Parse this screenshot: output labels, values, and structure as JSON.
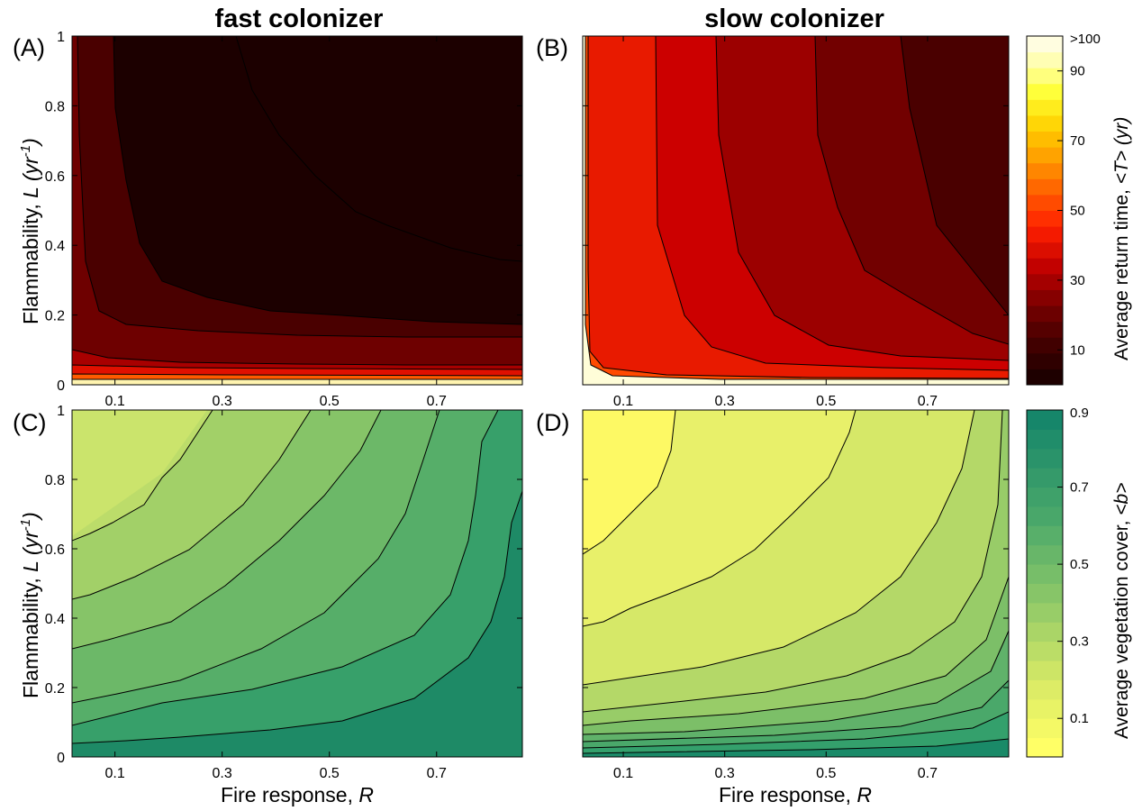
{
  "figure": {
    "title_left": "fast colonizer",
    "title_right": "slow colonizer",
    "ylabel_prefix": "Flammability, ",
    "ylabel_var": "L",
    "ylabel_unit_open": " (yr",
    "ylabel_unit_exp": "-1",
    "ylabel_unit_close": ")",
    "xlabel_prefix": "Fire response, ",
    "xlabel_var": "R",
    "colorbar_top_label_prefix": "Average return time, ",
    "colorbar_top_label_var": "<T> (yr)",
    "colorbar_bottom_label_prefix": "Average vegetation cover, ",
    "colorbar_bottom_label_var": "<b>"
  },
  "colors": {
    "return_time_low": "#1e0000",
    "return_time_high": "#fffde0",
    "cover_low": "#ffff66",
    "cover_high": "#16866a",
    "contour_line": "#000000"
  },
  "chart_data": [
    {
      "type": "heatmap",
      "panel": "(A)",
      "title": "fast colonizer",
      "x_ticks": [
        "0.1",
        "0.3",
        "0.5",
        "0.7"
      ],
      "y_ticks": [
        "0",
        "0.2",
        "0.4",
        "0.6",
        "0.8",
        "1"
      ],
      "xlim": [
        0.02,
        0.86
      ],
      "ylim": [
        0,
        1
      ],
      "z_label": "Average return time, <T> (yr)",
      "z_levels": [
        5,
        10,
        20,
        30,
        40,
        100
      ],
      "contours": [
        {
          "level": 5,
          "points": [
            [
              0.09,
              1.0
            ],
            [
              0.09,
              0.8
            ],
            [
              0.1,
              0.6
            ],
            [
              0.13,
              0.4
            ],
            [
              0.18,
              0.3
            ],
            [
              0.3,
              0.24
            ],
            [
              0.45,
              0.2
            ],
            [
              0.55,
              0.17
            ],
            [
              0.7,
              0.14
            ],
            [
              0.86,
              0.13
            ]
          ]
        },
        {
          "level": 10,
          "points": [
            [
              0.02,
              0.98
            ],
            [
              0.03,
              0.5
            ],
            [
              0.04,
              0.3
            ],
            [
              0.07,
              0.19
            ],
            [
              0.15,
              0.16
            ],
            [
              0.3,
              0.14
            ],
            [
              0.5,
              0.13
            ],
            [
              0.86,
              0.12
            ]
          ]
        }
      ]
    },
    {
      "type": "heatmap",
      "panel": "(B)",
      "title": "slow colonizer",
      "x_ticks": [
        "0.1",
        "0.3",
        "0.5",
        "0.7"
      ],
      "y_ticks": [],
      "xlim": [
        0.02,
        0.86
      ],
      "ylim": [
        0,
        1
      ],
      "z_label": "Average return time, <T> (yr)",
      "z_levels": [
        5,
        10,
        20,
        30,
        40,
        100
      ]
    },
    {
      "type": "heatmap",
      "panel": "(C)",
      "title": "",
      "x_ticks": [
        "0.1",
        "0.3",
        "0.5",
        "0.7"
      ],
      "y_ticks": [
        "0",
        "0.2",
        "0.4",
        "0.6",
        "0.8",
        "1"
      ],
      "xlim": [
        0.02,
        0.86
      ],
      "ylim": [
        0,
        1
      ],
      "z_label": "Average vegetation cover, <b>",
      "z_levels": [
        0.1,
        0.2,
        0.3,
        0.4,
        0.5,
        0.6,
        0.7,
        0.8,
        0.9
      ]
    },
    {
      "type": "heatmap",
      "panel": "(D)",
      "title": "",
      "x_ticks": [
        "0.1",
        "0.3",
        "0.5",
        "0.7"
      ],
      "y_ticks": [],
      "xlim": [
        0.02,
        0.86
      ],
      "ylim": [
        0,
        1
      ],
      "z_label": "Average vegetation cover, <b>",
      "z_levels": [
        0.1,
        0.2,
        0.3,
        0.4,
        0.5,
        0.6,
        0.7,
        0.8,
        0.9
      ]
    }
  ],
  "colorbars": {
    "top": {
      "ticks": [
        ">100",
        "90",
        "70",
        "50",
        "30",
        "10"
      ]
    },
    "bottom": {
      "ticks": [
        "0.9",
        "0.7",
        "0.5",
        "0.3",
        "0.1"
      ]
    }
  }
}
